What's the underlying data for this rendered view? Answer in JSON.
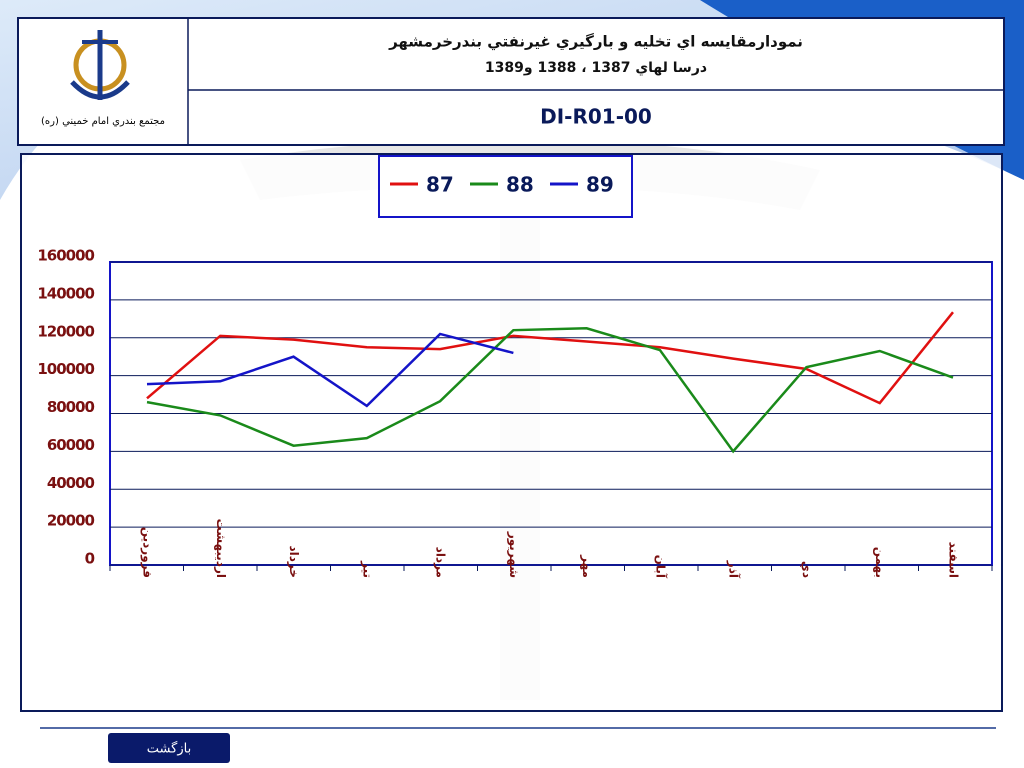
{
  "header": {
    "title": "نمودارمقايسه اي تخليه و بارگيري  غيرنفتي بندرخرمشهر",
    "subtitle": "درسا لهاي 1387 ، 1388 و1389",
    "code": "DI-R01-00",
    "logo_caption": "مجتمع بندري امام خميني (ره)"
  },
  "footer": {
    "button": "بازگشت"
  },
  "chart_data": {
    "type": "line",
    "categories": [
      "فروردين",
      "ارديبهشت",
      "خرداد",
      "تير",
      "مرداد",
      "شهريور",
      "مهر",
      "آبان",
      "آذر",
      "دي",
      "بهمن",
      "اسفند"
    ],
    "series": [
      {
        "name": "87",
        "color": "#e01010",
        "values": [
          88000,
          121000,
          119000,
          115000,
          114000,
          121000,
          118000,
          115000,
          109000,
          103500,
          85500,
          133500
        ]
      },
      {
        "name": "88",
        "color": "#1a8a1a",
        "values": [
          86000,
          79000,
          63000,
          67000,
          86500,
          124000,
          125000,
          113500,
          60000,
          104500,
          113000,
          99000
        ]
      },
      {
        "name": "89",
        "color": "#1414c8",
        "values": [
          95500,
          97000,
          110000,
          84000,
          122000,
          112000,
          null,
          null,
          null,
          null,
          null,
          null
        ]
      }
    ],
    "ylim": [
      0,
      160000
    ],
    "yticks": [
      0,
      20000,
      40000,
      60000,
      80000,
      100000,
      120000,
      140000,
      160000
    ],
    "grid": true,
    "legend": "top"
  }
}
